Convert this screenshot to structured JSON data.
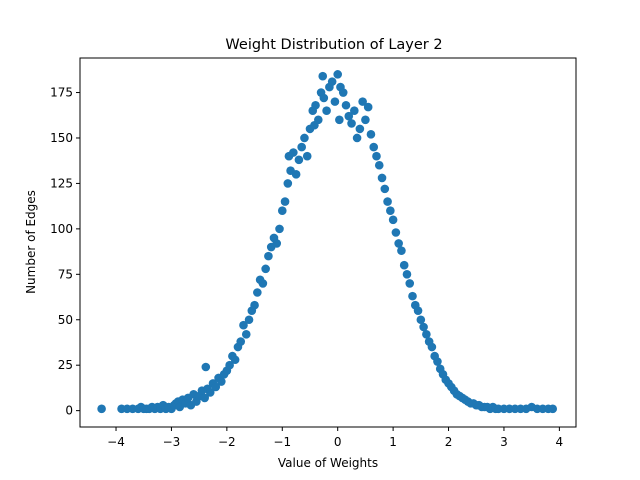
{
  "chart_data": {
    "type": "scatter",
    "title": "Weight Distribution of Layer 2",
    "xlabel": "Value of Weights",
    "ylabel": "Number of Edges",
    "xlim": [
      -4.65,
      4.3
    ],
    "ylim": [
      -9,
      194
    ],
    "xticks": [
      -4,
      -3,
      -2,
      -1,
      0,
      1,
      2,
      3,
      4
    ],
    "yticks": [
      0,
      25,
      50,
      75,
      100,
      125,
      150,
      175
    ],
    "xtick_labels": [
      "−4",
      "−3",
      "−2",
      "−1",
      "0",
      "1",
      "2",
      "3",
      "4"
    ],
    "ytick_labels": [
      "0",
      "25",
      "50",
      "75",
      "100",
      "125",
      "150",
      "175"
    ],
    "grid": false,
    "color": "#1f77b4",
    "points": [
      [
        -4.26,
        1
      ],
      [
        -3.9,
        1
      ],
      [
        -3.8,
        1
      ],
      [
        -3.7,
        1
      ],
      [
        -3.6,
        1
      ],
      [
        -3.55,
        2
      ],
      [
        -3.5,
        1
      ],
      [
        -3.45,
        1
      ],
      [
        -3.4,
        1
      ],
      [
        -3.35,
        2
      ],
      [
        -3.3,
        1
      ],
      [
        -3.25,
        2
      ],
      [
        -3.2,
        1
      ],
      [
        -3.15,
        3
      ],
      [
        -3.1,
        1
      ],
      [
        -3.05,
        2
      ],
      [
        -3.0,
        1
      ],
      [
        -2.95,
        3
      ],
      [
        -2.92,
        4
      ],
      [
        -2.88,
        5
      ],
      [
        -2.85,
        2
      ],
      [
        -2.8,
        6
      ],
      [
        -2.75,
        4
      ],
      [
        -2.7,
        7
      ],
      [
        -2.65,
        3
      ],
      [
        -2.6,
        9
      ],
      [
        -2.55,
        5
      ],
      [
        -2.5,
        8
      ],
      [
        -2.45,
        11
      ],
      [
        -2.4,
        7
      ],
      [
        -2.38,
        24
      ],
      [
        -2.35,
        12
      ],
      [
        -2.3,
        10
      ],
      [
        -2.25,
        15
      ],
      [
        -2.2,
        13
      ],
      [
        -2.15,
        18
      ],
      [
        -2.1,
        16
      ],
      [
        -2.05,
        20
      ],
      [
        -2.0,
        22
      ],
      [
        -1.95,
        25
      ],
      [
        -1.9,
        30
      ],
      [
        -1.85,
        28
      ],
      [
        -1.8,
        35
      ],
      [
        -1.75,
        38
      ],
      [
        -1.7,
        47
      ],
      [
        -1.65,
        42
      ],
      [
        -1.6,
        50
      ],
      [
        -1.55,
        55
      ],
      [
        -1.5,
        58
      ],
      [
        -1.45,
        65
      ],
      [
        -1.4,
        72
      ],
      [
        -1.35,
        70
      ],
      [
        -1.3,
        78
      ],
      [
        -1.25,
        85
      ],
      [
        -1.2,
        90
      ],
      [
        -1.15,
        95
      ],
      [
        -1.1,
        92
      ],
      [
        -1.05,
        100
      ],
      [
        -1.0,
        110
      ],
      [
        -0.95,
        115
      ],
      [
        -0.9,
        125
      ],
      [
        -0.88,
        140
      ],
      [
        -0.85,
        132
      ],
      [
        -0.8,
        142
      ],
      [
        -0.75,
        130
      ],
      [
        -0.7,
        138
      ],
      [
        -0.65,
        145
      ],
      [
        -0.6,
        150
      ],
      [
        -0.55,
        140
      ],
      [
        -0.5,
        155
      ],
      [
        -0.45,
        165
      ],
      [
        -0.42,
        157
      ],
      [
        -0.4,
        168
      ],
      [
        -0.35,
        160
      ],
      [
        -0.3,
        175
      ],
      [
        -0.27,
        184
      ],
      [
        -0.25,
        172
      ],
      [
        -0.2,
        165
      ],
      [
        -0.15,
        178
      ],
      [
        -0.1,
        181
      ],
      [
        -0.05,
        170
      ],
      [
        0.0,
        185
      ],
      [
        0.03,
        160
      ],
      [
        0.05,
        178
      ],
      [
        0.1,
        175
      ],
      [
        0.15,
        168
      ],
      [
        0.2,
        162
      ],
      [
        0.25,
        158
      ],
      [
        0.3,
        165
      ],
      [
        0.35,
        150
      ],
      [
        0.4,
        155
      ],
      [
        0.45,
        170
      ],
      [
        0.5,
        160
      ],
      [
        0.55,
        167
      ],
      [
        0.6,
        152
      ],
      [
        0.65,
        145
      ],
      [
        0.7,
        140
      ],
      [
        0.75,
        135
      ],
      [
        0.8,
        128
      ],
      [
        0.85,
        122
      ],
      [
        0.9,
        115
      ],
      [
        0.95,
        110
      ],
      [
        1.0,
        105
      ],
      [
        1.05,
        98
      ],
      [
        1.1,
        92
      ],
      [
        1.15,
        88
      ],
      [
        1.2,
        80
      ],
      [
        1.25,
        75
      ],
      [
        1.3,
        70
      ],
      [
        1.35,
        63
      ],
      [
        1.4,
        58
      ],
      [
        1.45,
        55
      ],
      [
        1.5,
        50
      ],
      [
        1.55,
        46
      ],
      [
        1.6,
        42
      ],
      [
        1.65,
        38
      ],
      [
        1.7,
        35
      ],
      [
        1.75,
        30
      ],
      [
        1.8,
        27
      ],
      [
        1.85,
        23
      ],
      [
        1.9,
        20
      ],
      [
        1.95,
        17
      ],
      [
        2.0,
        15
      ],
      [
        2.05,
        13
      ],
      [
        2.1,
        11
      ],
      [
        2.15,
        9
      ],
      [
        2.2,
        8
      ],
      [
        2.25,
        7
      ],
      [
        2.3,
        6
      ],
      [
        2.35,
        5
      ],
      [
        2.4,
        4
      ],
      [
        2.45,
        4
      ],
      [
        2.5,
        3
      ],
      [
        2.55,
        3
      ],
      [
        2.6,
        2
      ],
      [
        2.65,
        2
      ],
      [
        2.7,
        2
      ],
      [
        2.75,
        1
      ],
      [
        2.8,
        2
      ],
      [
        2.85,
        1
      ],
      [
        2.9,
        1
      ],
      [
        3.0,
        1
      ],
      [
        3.1,
        1
      ],
      [
        3.2,
        1
      ],
      [
        3.3,
        1
      ],
      [
        3.4,
        1
      ],
      [
        3.5,
        2
      ],
      [
        3.6,
        1
      ],
      [
        3.7,
        1
      ],
      [
        3.8,
        1
      ],
      [
        3.88,
        1
      ]
    ]
  }
}
